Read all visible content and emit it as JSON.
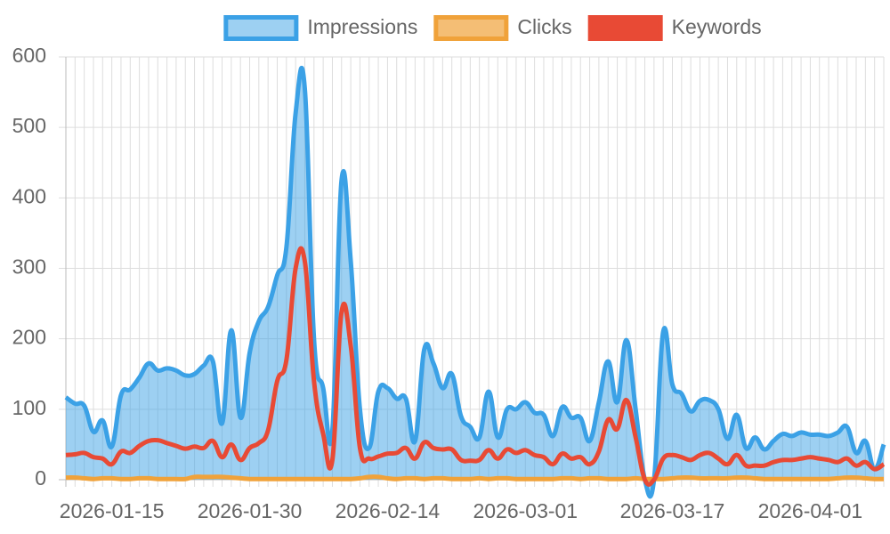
{
  "chart_data": {
    "type": "line",
    "x": [
      "2026-01-10",
      "2026-01-11",
      "2026-01-12",
      "2026-01-13",
      "2026-01-14",
      "2026-01-15",
      "2026-01-16",
      "2026-01-17",
      "2026-01-18",
      "2026-01-19",
      "2026-01-20",
      "2026-01-21",
      "2026-01-22",
      "2026-01-23",
      "2026-01-24",
      "2026-01-25",
      "2026-01-26",
      "2026-01-27",
      "2026-01-28",
      "2026-01-29",
      "2026-01-30",
      "2026-01-31",
      "2026-02-01",
      "2026-02-02",
      "2026-02-03",
      "2026-02-04",
      "2026-02-05",
      "2026-02-06",
      "2026-02-07",
      "2026-02-08",
      "2026-02-09",
      "2026-02-10",
      "2026-02-11",
      "2026-02-12",
      "2026-02-13",
      "2026-02-14",
      "2026-02-15",
      "2026-02-16",
      "2026-02-17",
      "2026-02-18",
      "2026-02-19",
      "2026-02-20",
      "2026-02-21",
      "2026-02-22",
      "2026-02-23",
      "2026-02-24",
      "2026-02-25",
      "2026-02-26",
      "2026-02-27",
      "2026-02-28",
      "2026-03-01",
      "2026-03-02",
      "2026-03-03",
      "2026-03-04",
      "2026-03-05",
      "2026-03-06",
      "2026-03-07",
      "2026-03-08",
      "2026-03-09",
      "2026-03-10",
      "2026-03-11",
      "2026-03-12",
      "2026-03-13",
      "2026-03-14",
      "2026-03-15",
      "2026-03-16",
      "2026-03-17",
      "2026-03-18",
      "2026-03-19",
      "2026-03-20",
      "2026-03-21",
      "2026-03-22",
      "2026-03-23",
      "2026-03-24",
      "2026-03-25",
      "2026-03-26",
      "2026-03-27",
      "2026-03-28",
      "2026-03-29",
      "2026-03-30",
      "2026-03-31",
      "2026-04-01",
      "2026-04-02",
      "2026-04-03",
      "2026-04-04",
      "2026-04-05",
      "2026-04-06",
      "2026-04-07",
      "2026-04-08",
      "2026-04-09"
    ],
    "xticks": [
      "2026-01-15",
      "2026-01-30",
      "2026-02-14",
      "2026-03-01",
      "2026-03-17",
      "2026-04-01"
    ],
    "series": [
      {
        "name": "Impressions",
        "color": "#3ba1e6",
        "fill": true,
        "values": [
          117,
          108,
          105,
          68,
          84,
          47,
          120,
          128,
          145,
          165,
          155,
          158,
          155,
          148,
          150,
          162,
          168,
          80,
          212,
          88,
          180,
          225,
          245,
          290,
          330,
          520,
          555,
          200,
          130,
          70,
          425,
          310,
          100,
          45,
          125,
          130,
          115,
          115,
          55,
          185,
          165,
          130,
          150,
          90,
          75,
          60,
          125,
          60,
          100,
          100,
          110,
          95,
          92,
          62,
          103,
          88,
          88,
          55,
          110,
          168,
          110,
          198,
          100,
          0,
          0,
          210,
          135,
          122,
          97,
          112,
          113,
          100,
          58,
          92,
          45,
          60,
          43,
          55,
          65,
          62,
          67,
          64,
          64,
          62,
          67,
          75,
          38,
          55,
          15,
          50
        ]
      },
      {
        "name": "Clicks",
        "color": "#f0a23a",
        "fill": false,
        "values": [
          3,
          3,
          2,
          1,
          2,
          2,
          1,
          1,
          2,
          2,
          1,
          1,
          1,
          1,
          4,
          4,
          4,
          4,
          3,
          2,
          1,
          1,
          1,
          1,
          1,
          1,
          1,
          1,
          1,
          1,
          1,
          1,
          2,
          4,
          4,
          2,
          1,
          2,
          2,
          1,
          2,
          2,
          1,
          1,
          1,
          2,
          1,
          2,
          2,
          1,
          1,
          1,
          1,
          1,
          2,
          2,
          1,
          2,
          2,
          1,
          1,
          1,
          2,
          1,
          1,
          1,
          2,
          3,
          3,
          2,
          2,
          2,
          2,
          3,
          3,
          2,
          1,
          1,
          1,
          1,
          1,
          1,
          1,
          1,
          2,
          3,
          3,
          2,
          1,
          1
        ]
      },
      {
        "name": "Keywords",
        "color": "#e84a35",
        "fill": false,
        "values": [
          35,
          36,
          38,
          32,
          30,
          22,
          40,
          38,
          48,
          55,
          56,
          52,
          48,
          44,
          47,
          45,
          55,
          32,
          50,
          28,
          45,
          52,
          70,
          140,
          170,
          300,
          310,
          140,
          65,
          28,
          238,
          190,
          45,
          30,
          33,
          37,
          38,
          45,
          30,
          53,
          45,
          43,
          43,
          28,
          27,
          28,
          42,
          30,
          43,
          38,
          42,
          35,
          32,
          22,
          37,
          30,
          32,
          22,
          40,
          85,
          72,
          113,
          60,
          0,
          0,
          30,
          35,
          32,
          28,
          35,
          38,
          30,
          22,
          35,
          20,
          20,
          20,
          25,
          28,
          28,
          30,
          32,
          30,
          28,
          25,
          30,
          20,
          25,
          15,
          22
        ]
      }
    ],
    "ylim": [
      0,
      600
    ],
    "yticks": [
      0,
      100,
      200,
      300,
      400,
      500,
      600
    ],
    "grid": true,
    "legend": "top"
  }
}
